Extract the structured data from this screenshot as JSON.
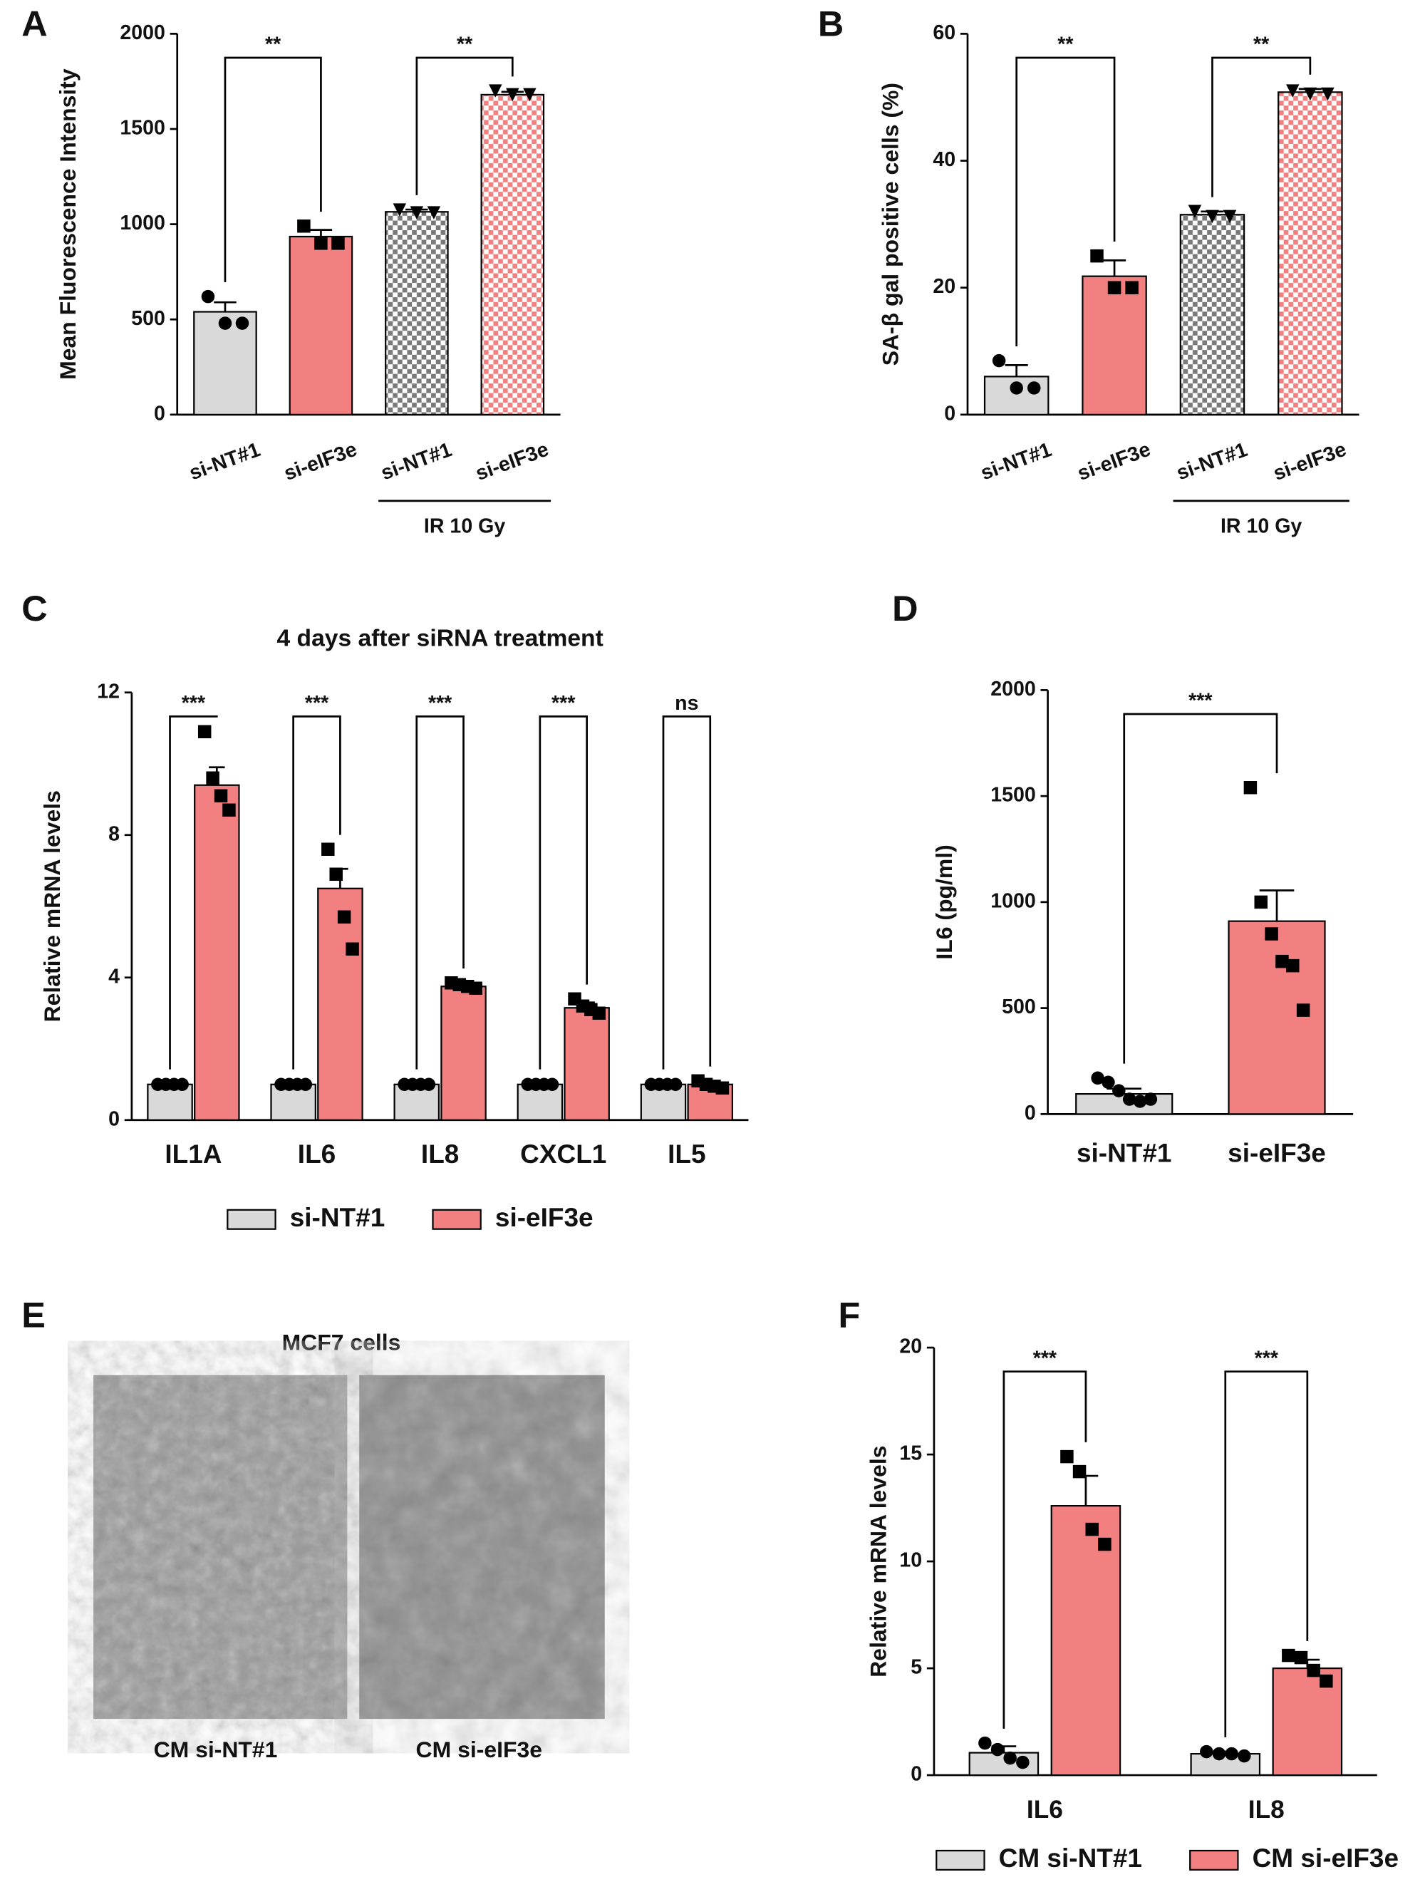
{
  "chart_data": [
    {
      "type": "bar",
      "label": "A",
      "ylabel": "Mean Fluorescence Intensity",
      "categories": [
        "si-NT#1",
        "si-eIF3e",
        "si-NT#1",
        "si-eIF3e"
      ],
      "values": [
        540,
        935,
        1065,
        1680
      ],
      "errors": [
        50,
        35,
        12,
        15
      ],
      "points": [
        [
          620,
          480,
          480
        ],
        [
          990,
          900,
          900
        ],
        [
          1075,
          1060,
          1060
        ],
        [
          1700,
          1680,
          1680
        ]
      ],
      "colors": [
        "#d9d9d9",
        "#f28080",
        "#7a7a7a",
        "#f28080"
      ],
      "hatched": [
        false,
        false,
        true,
        true
      ],
      "markers": [
        "circle",
        "square",
        "triangle",
        "triangle"
      ],
      "group_label": "IR 10 Gy",
      "annotations": [
        "**",
        "**"
      ],
      "ylim": [
        0,
        2000
      ],
      "yticks": [
        0,
        500,
        1000,
        1500,
        2000
      ]
    },
    {
      "type": "bar",
      "label": "B",
      "ylabel": "SA-β gal positive cells (%)",
      "categories": [
        "si-NT#1",
        "si-eIF3e",
        "si-NT#1",
        "si-eIF3e"
      ],
      "values": [
        6,
        21.8,
        31.5,
        50.8
      ],
      "errors": [
        1.8,
        2.5,
        0.5,
        0.5
      ],
      "points": [
        [
          8.5,
          4.2,
          4.2
        ],
        [
          25,
          20,
          20
        ],
        [
          32,
          31.2,
          31.2
        ],
        [
          51,
          50.5,
          50.5
        ]
      ],
      "colors": [
        "#d9d9d9",
        "#f28080",
        "#7a7a7a",
        "#f28080"
      ],
      "hatched": [
        false,
        false,
        true,
        true
      ],
      "markers": [
        "circle",
        "square",
        "triangle",
        "triangle"
      ],
      "group_label": "IR 10 Gy",
      "annotations": [
        "**",
        "**"
      ],
      "ylim": [
        0,
        60
      ],
      "yticks": [
        0,
        20,
        40,
        60
      ]
    },
    {
      "type": "bar",
      "label": "C",
      "title": "4 days after siRNA treatment",
      "ylabel": "Relative mRNA levels",
      "categories": [
        "IL1A",
        "IL6",
        "IL8",
        "CXCL1",
        "IL5"
      ],
      "series": [
        {
          "name": "si-NT#1",
          "color": "#d9d9d9",
          "marker": "circle",
          "values": [
            1,
            1,
            1,
            1,
            1
          ],
          "errors": [
            0.02,
            0.02,
            0.02,
            0.02,
            0.02
          ],
          "points": [
            [
              1,
              1,
              1,
              1
            ],
            [
              1,
              1,
              1,
              1
            ],
            [
              1,
              1,
              1,
              1
            ],
            [
              1,
              1,
              1,
              1
            ],
            [
              1,
              1,
              1,
              1
            ]
          ]
        },
        {
          "name": "si-eIF3e",
          "color": "#f28080",
          "marker": "square",
          "values": [
            9.4,
            6.5,
            3.75,
            3.15,
            1.0
          ],
          "errors": [
            0.5,
            0.55,
            0.05,
            0.15,
            0.05
          ],
          "points": [
            [
              10.9,
              9.6,
              9.1,
              8.7
            ],
            [
              7.6,
              6.9,
              5.7,
              4.8
            ],
            [
              3.85,
              3.8,
              3.75,
              3.7
            ],
            [
              3.4,
              3.2,
              3.1,
              3.0
            ],
            [
              1.1,
              1.0,
              0.95,
              0.9
            ]
          ]
        }
      ],
      "annotations": [
        "***",
        "***",
        "***",
        "***",
        "ns"
      ],
      "ylim": [
        0,
        12
      ],
      "yticks": [
        0,
        4,
        8,
        12
      ]
    },
    {
      "type": "bar",
      "label": "D",
      "ylabel": "IL6 (pg/ml)",
      "categories": [
        "si-NT#1",
        "si-eIF3e"
      ],
      "values": [
        95,
        910
      ],
      "errors": [
        25,
        145
      ],
      "points": [
        [
          170,
          150,
          110,
          70,
          60,
          70
        ],
        [
          1540,
          1000,
          850,
          720,
          700,
          490
        ]
      ],
      "colors": [
        "#d9d9d9",
        "#f28080"
      ],
      "hatched": [
        false,
        false
      ],
      "markers": [
        "circle",
        "square"
      ],
      "annotations": [
        "***"
      ],
      "ylim": [
        0,
        2000
      ],
      "yticks": [
        0,
        500,
        1000,
        1500,
        2000
      ]
    },
    {
      "type": "bar",
      "label": "F",
      "ylabel": "Relative mRNA levels",
      "categories": [
        "IL6",
        "IL8"
      ],
      "series": [
        {
          "name": "CM si-NT#1",
          "color": "#d9d9d9",
          "marker": "circle",
          "values": [
            1.05,
            1.0
          ],
          "errors": [
            0.3,
            0.1
          ],
          "points": [
            [
              1.5,
              1.2,
              0.8,
              0.6
            ],
            [
              1.1,
              1.0,
              1.0,
              0.9
            ]
          ]
        },
        {
          "name": "CM si-eIF3e",
          "color": "#f28080",
          "marker": "square",
          "values": [
            12.6,
            5.0
          ],
          "errors": [
            1.4,
            0.4
          ],
          "points": [
            [
              14.9,
              14.2,
              11.5,
              10.8
            ],
            [
              5.6,
              5.5,
              4.9,
              4.4
            ]
          ]
        }
      ],
      "annotations": [
        "***",
        "***"
      ],
      "ylim": [
        0,
        20
      ],
      "yticks": [
        0,
        5,
        10,
        15,
        20
      ]
    }
  ],
  "image_panel": {
    "label": "E",
    "title": "MCF7 cells",
    "captions": [
      "CM si-NT#1",
      "CM si-eIF3e"
    ]
  }
}
